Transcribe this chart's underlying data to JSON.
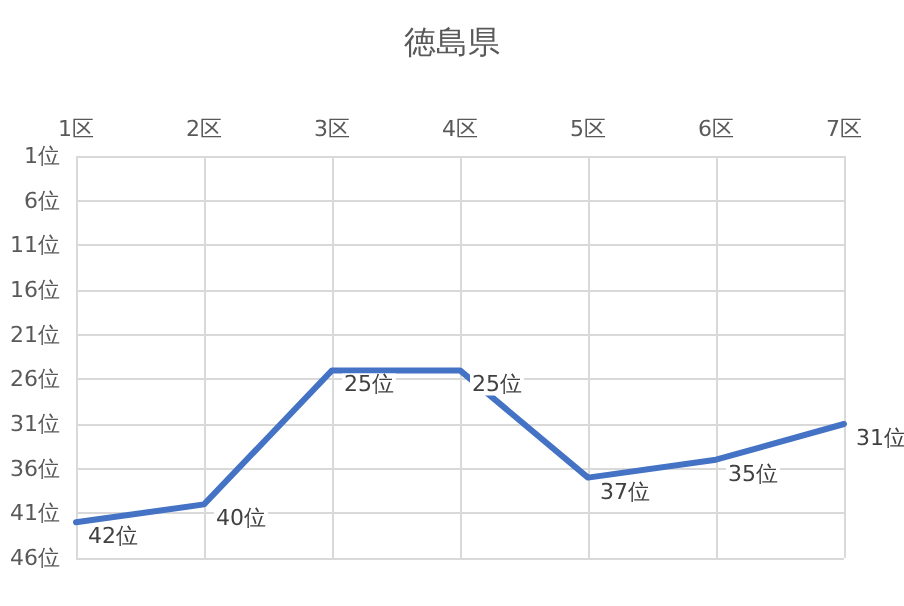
{
  "chart_data": {
    "type": "line",
    "title": "徳島県",
    "categories": [
      "1区",
      "2区",
      "3区",
      "4区",
      "5区",
      "6区",
      "7区"
    ],
    "series": [
      {
        "color": "#4472c4",
        "values": [
          42,
          40,
          25,
          25,
          37,
          35,
          31
        ],
        "value_labels": [
          "42位",
          "40位",
          "25位",
          "25位",
          "37位",
          "35位",
          "31位"
        ]
      }
    ],
    "ylim": [
      46,
      1
    ],
    "yticks": [
      {
        "value": 1,
        "label": "1位"
      },
      {
        "value": 6,
        "label": "6位"
      },
      {
        "value": 11,
        "label": "11位"
      },
      {
        "value": 16,
        "label": "16位"
      },
      {
        "value": 21,
        "label": "21位"
      },
      {
        "value": 26,
        "label": "26位"
      },
      {
        "value": 31,
        "label": "31位"
      },
      {
        "value": 36,
        "label": "36位"
      },
      {
        "value": 41,
        "label": "41位"
      },
      {
        "value": 46,
        "label": "46位"
      }
    ],
    "grid": true,
    "marker": "none",
    "line_style": "solid"
  }
}
